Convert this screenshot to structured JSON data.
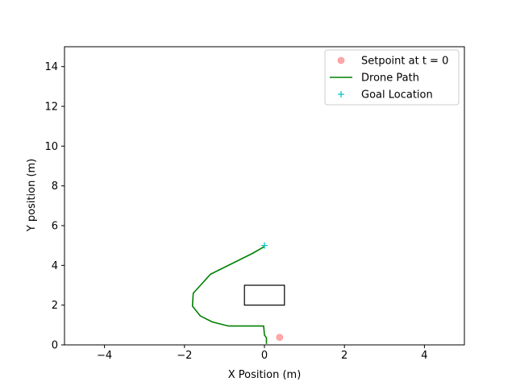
{
  "chart_data": {
    "type": "line",
    "title": "",
    "xlabel": "X Position (m)",
    "ylabel": "Y position (m)",
    "xlim": [
      -5,
      5
    ],
    "ylim": [
      0,
      15
    ],
    "xticks": [
      -4,
      -2,
      0,
      2,
      4
    ],
    "yticks": [
      0,
      2,
      4,
      6,
      8,
      10,
      12,
      14
    ],
    "grid": false,
    "legend_position": "top-right",
    "series": [
      {
        "name": "Setpoint at t = 0",
        "kind": "marker",
        "marker": "circle",
        "color": "#ff9a9a",
        "points": [
          [
            0.38,
            0.38
          ]
        ]
      },
      {
        "name": "Drone Path",
        "kind": "line",
        "color": "#008000",
        "points": [
          [
            0.05,
            0.05
          ],
          [
            0.05,
            0.35
          ],
          [
            0.0,
            0.5
          ],
          [
            -0.02,
            0.95
          ],
          [
            -0.9,
            0.95
          ],
          [
            -1.3,
            1.15
          ],
          [
            -1.6,
            1.45
          ],
          [
            -1.8,
            1.95
          ],
          [
            -1.78,
            2.6
          ],
          [
            -1.35,
            3.55
          ],
          [
            -0.3,
            4.6
          ],
          [
            0.0,
            4.95
          ]
        ]
      },
      {
        "name": "Goal Location",
        "kind": "marker",
        "marker": "plus",
        "color": "#00bfbf",
        "points": [
          [
            0.0,
            5.0
          ]
        ]
      }
    ],
    "shapes": [
      {
        "kind": "rectangle",
        "x": [
          -0.5,
          0.5
        ],
        "y": [
          2.0,
          3.0
        ],
        "color": "#000000"
      }
    ]
  }
}
